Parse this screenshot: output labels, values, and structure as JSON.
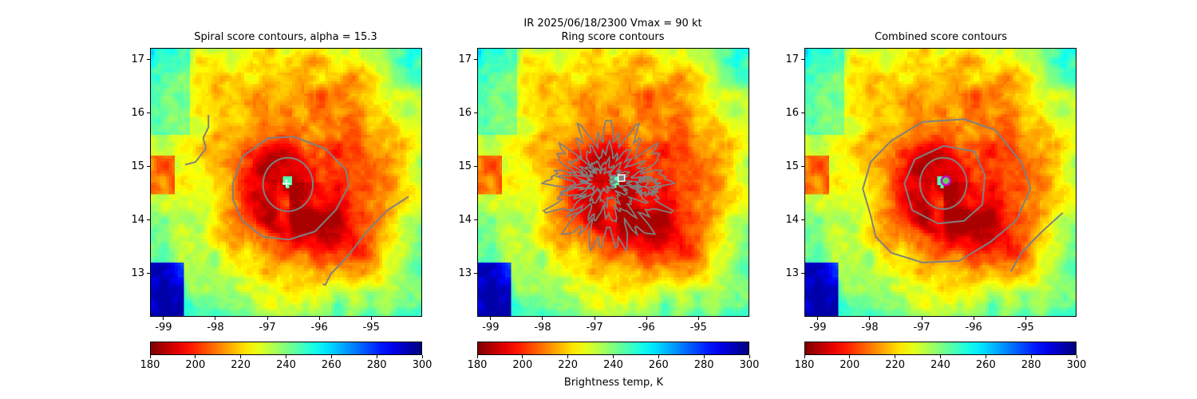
{
  "suptitle": "IR  2025/06/18/2300    Vmax = 90 kt",
  "colorbar_label": "Brightness temp, K",
  "chart_data": [
    {
      "type": "heatmap",
      "title": "Spiral score contours, alpha = 15.3",
      "xlim": [
        -99.26,
        -94.02
      ],
      "ylim": [
        12.19,
        17.22
      ],
      "xticks": [
        "-99",
        "-98",
        "-97",
        "-96",
        "-95"
      ],
      "yticks": [
        "13",
        "14",
        "15",
        "16",
        "17"
      ],
      "colormap": "jet_r",
      "clim": [
        180,
        300
      ],
      "colorbar_ticks": [
        "180",
        "200",
        "220",
        "240",
        "260",
        "280",
        "300"
      ],
      "contour_color": "#808080",
      "marker": {
        "shape": "plus",
        "color": "#ffffff",
        "lon": -96.65,
        "lat": 14.7
      },
      "contours": [
        {
          "kind": "ellipse",
          "center": [
            -96.62,
            14.68
          ],
          "radii": [
            0.48,
            0.5
          ]
        },
        {
          "kind": "line",
          "closed": true,
          "points": [
            [
              -97.68,
              14.7
            ],
            [
              -97.5,
              15.2
            ],
            [
              -97.0,
              15.55
            ],
            [
              -96.5,
              15.57
            ],
            [
              -95.9,
              15.35
            ],
            [
              -95.5,
              14.95
            ],
            [
              -95.45,
              14.65
            ],
            [
              -95.7,
              14.2
            ],
            [
              -96.1,
              13.8
            ],
            [
              -96.6,
              13.65
            ],
            [
              -97.1,
              13.7
            ],
            [
              -97.5,
              14.0
            ],
            [
              -97.68,
              14.4
            ]
          ]
        },
        {
          "kind": "line",
          "closed": false,
          "points": [
            [
              -94.3,
              14.45
            ],
            [
              -94.7,
              14.2
            ],
            [
              -95.1,
              13.8
            ],
            [
              -95.5,
              13.3
            ],
            [
              -95.8,
              13.0
            ],
            [
              -95.9,
              12.8
            ],
            [
              -95.95,
              12.82
            ]
          ]
        },
        {
          "kind": "line",
          "closed": false,
          "points": [
            [
              -98.15,
              15.98
            ],
            [
              -98.15,
              15.75
            ],
            [
              -98.25,
              15.55
            ],
            [
              -98.2,
              15.35
            ],
            [
              -98.4,
              15.1
            ],
            [
              -98.6,
              15.05
            ]
          ]
        }
      ]
    },
    {
      "type": "heatmap",
      "title": "Ring score contours",
      "xlim": [
        -99.26,
        -94.02
      ],
      "ylim": [
        12.19,
        17.22
      ],
      "xticks": [
        "-99",
        "-98",
        "-97",
        "-96",
        "-95"
      ],
      "yticks": [
        "13",
        "14",
        "15",
        "16",
        "17"
      ],
      "colormap": "jet_r",
      "clim": [
        180,
        300
      ],
      "colorbar_ticks": [
        "180",
        "200",
        "220",
        "240",
        "260",
        "280",
        "300"
      ],
      "contour_color": "#808080",
      "marker": {
        "shape": "square",
        "color": "#ffffff",
        "lon": -96.5,
        "lat": 14.8
      },
      "contours": [
        {
          "kind": "noisy",
          "center": [
            -96.75,
            14.65
          ],
          "radii": [
            1.0,
            1.0
          ]
        },
        {
          "kind": "noisy",
          "center": [
            -96.8,
            14.7
          ],
          "radii": [
            0.7,
            0.6
          ]
        },
        {
          "kind": "noisy",
          "center": [
            -96.85,
            14.72
          ],
          "radii": [
            0.45,
            0.35
          ]
        },
        {
          "kind": "noisy",
          "center": [
            -96.9,
            14.75
          ],
          "radii": [
            0.25,
            0.2
          ]
        },
        {
          "kind": "noisy",
          "center": [
            -96.0,
            14.65
          ],
          "radii": [
            0.2,
            0.15
          ]
        }
      ]
    },
    {
      "type": "heatmap",
      "title": "Combined score contours",
      "xlim": [
        -99.26,
        -94.02
      ],
      "ylim": [
        12.19,
        17.22
      ],
      "xticks": [
        "-99",
        "-98",
        "-97",
        "-96",
        "-95"
      ],
      "yticks": [
        "13",
        "14",
        "15",
        "16",
        "17"
      ],
      "colormap": "jet_r",
      "clim": [
        180,
        300
      ],
      "colorbar_ticks": [
        "180",
        "200",
        "220",
        "240",
        "260",
        "280",
        "300"
      ],
      "contour_color": "#808080",
      "marker": {
        "shape": "circle",
        "color": "#cc00cc",
        "lon": -96.55,
        "lat": 14.75
      },
      "contours": [
        {
          "kind": "ellipse",
          "center": [
            -96.6,
            14.7
          ],
          "radii": [
            0.45,
            0.48
          ]
        },
        {
          "kind": "line",
          "closed": true,
          "points": [
            [
              -97.35,
              14.7
            ],
            [
              -97.15,
              15.15
            ],
            [
              -96.6,
              15.4
            ],
            [
              -96.0,
              15.3
            ],
            [
              -95.8,
              14.85
            ],
            [
              -95.85,
              14.3
            ],
            [
              -96.2,
              14.0
            ],
            [
              -96.7,
              13.95
            ],
            [
              -97.2,
              14.2
            ]
          ]
        },
        {
          "kind": "line",
          "closed": true,
          "points": [
            [
              -98.15,
              14.6
            ],
            [
              -98.0,
              15.1
            ],
            [
              -97.6,
              15.5
            ],
            [
              -97.0,
              15.85
            ],
            [
              -96.2,
              15.9
            ],
            [
              -95.6,
              15.7
            ],
            [
              -95.1,
              15.1
            ],
            [
              -94.92,
              14.6
            ],
            [
              -95.2,
              14.0
            ],
            [
              -95.7,
              13.6
            ],
            [
              -96.3,
              13.25
            ],
            [
              -97.0,
              13.22
            ],
            [
              -97.6,
              13.4
            ],
            [
              -97.9,
              13.7
            ],
            [
              -98.0,
              14.1
            ]
          ]
        },
        {
          "kind": "line",
          "closed": false,
          "points": [
            [
              -94.3,
              14.15
            ],
            [
              -94.7,
              13.8
            ],
            [
              -95.1,
              13.4
            ],
            [
              -95.3,
              13.05
            ]
          ]
        }
      ]
    }
  ]
}
